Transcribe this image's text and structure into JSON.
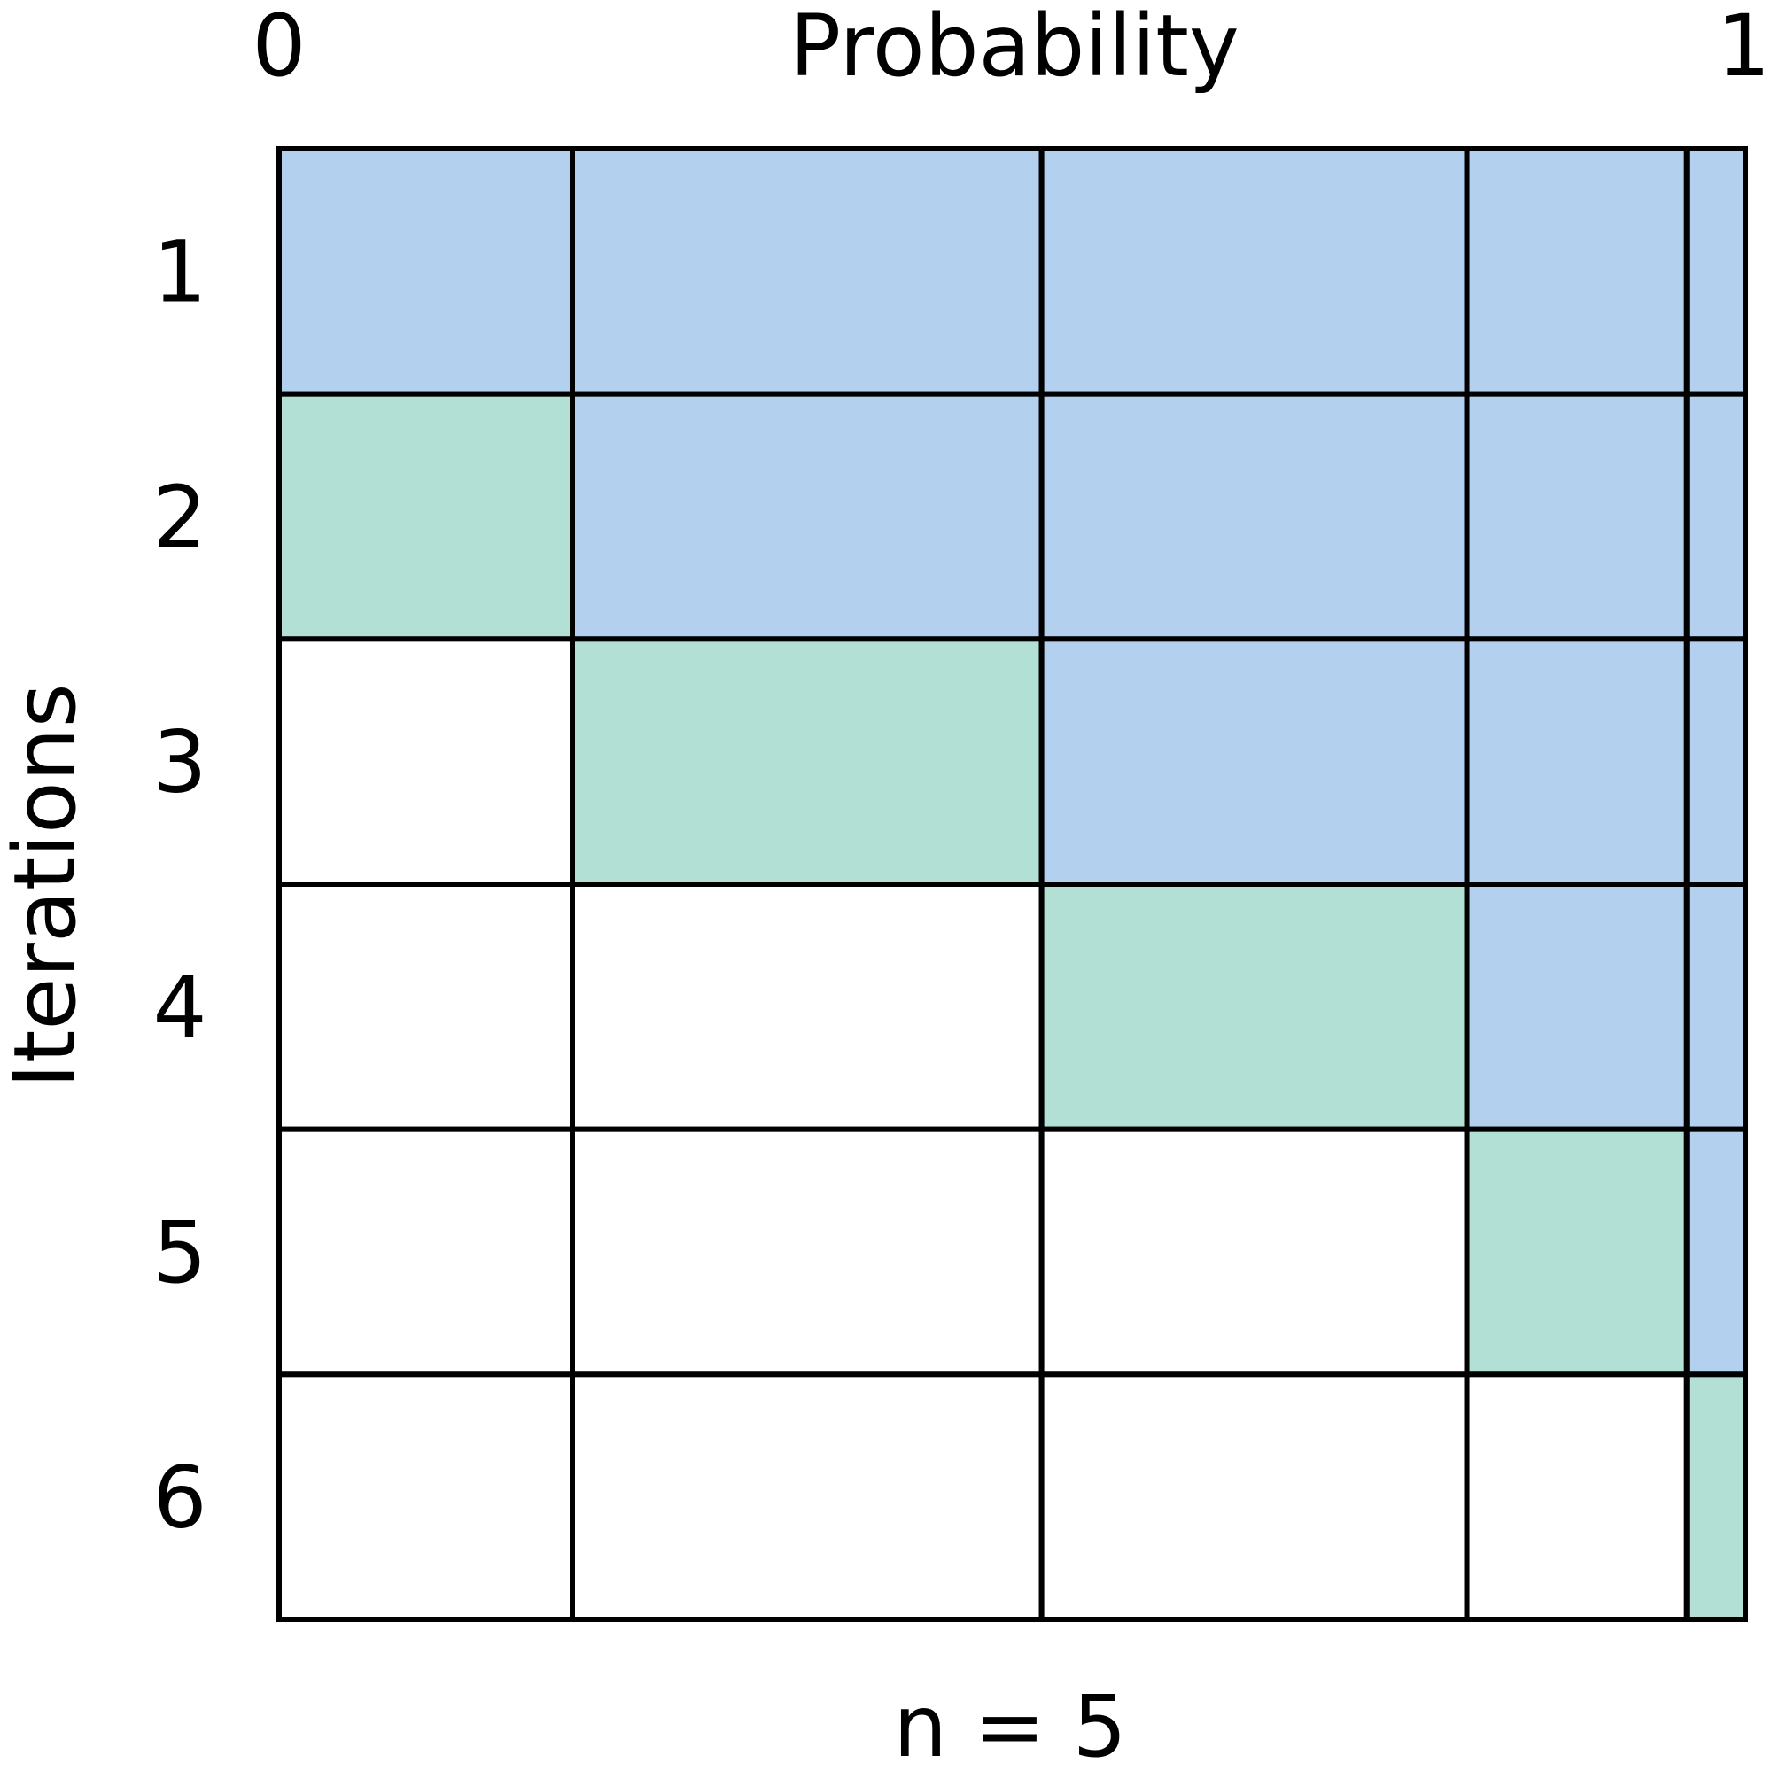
{
  "axis_top": {
    "label": "Probability",
    "min_label": "0",
    "max_label": "1"
  },
  "axis_left": {
    "label": "Iterations",
    "row_labels": [
      "1",
      "2",
      "3",
      "4",
      "5",
      "6"
    ]
  },
  "footer_label": "n = 5",
  "colors": {
    "covered": "#b3d1ef",
    "current": "#b3e0d5",
    "empty": "#ffffff",
    "grid": "#000000"
  },
  "chart_data": {
    "type": "table",
    "column_probabilities": [
      0.2,
      0.32,
      0.29,
      0.15,
      0.04
    ],
    "rows": [
      [
        "covered",
        "covered",
        "covered",
        "covered",
        "covered"
      ],
      [
        "current",
        "covered",
        "covered",
        "covered",
        "covered"
      ],
      [
        "empty",
        "current",
        "covered",
        "covered",
        "covered"
      ],
      [
        "empty",
        "empty",
        "current",
        "covered",
        "covered"
      ],
      [
        "empty",
        "empty",
        "empty",
        "current",
        "covered"
      ],
      [
        "empty",
        "empty",
        "empty",
        "empty",
        "current"
      ]
    ]
  }
}
